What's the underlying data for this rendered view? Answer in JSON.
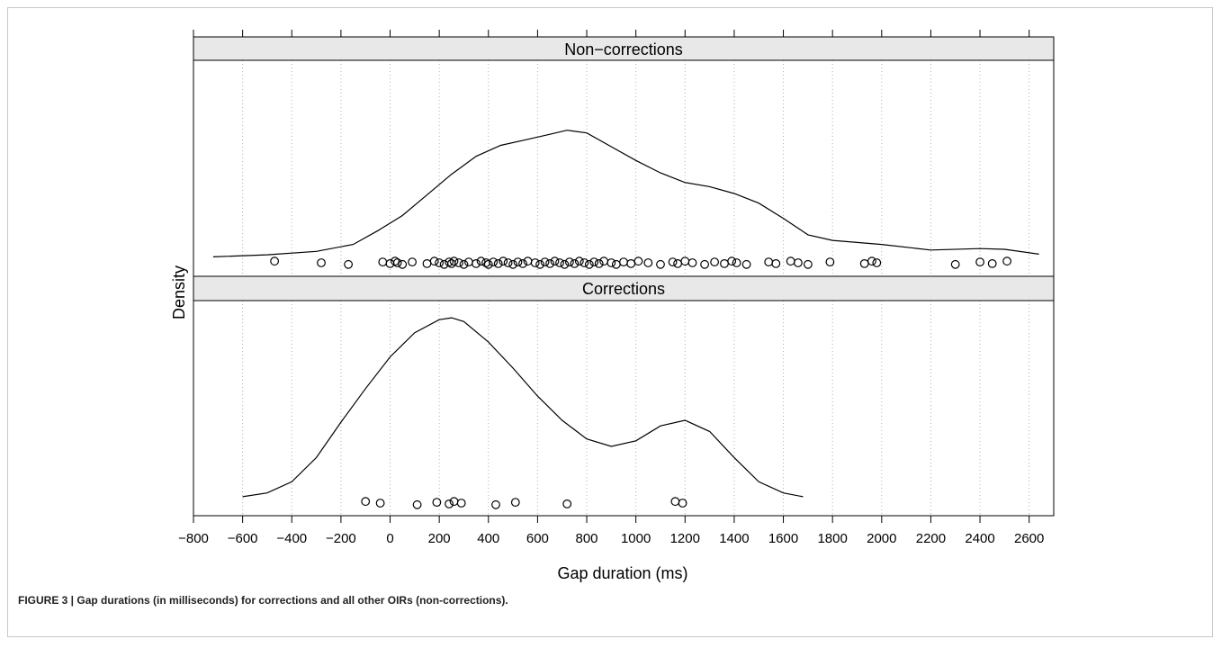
{
  "caption": "FIGURE 3 | Gap durations (in milliseconds) for corrections and all other OIRs (non-corrections).",
  "chart_data": {
    "type": "density",
    "xlabel": "Gap duration (ms)",
    "ylabel": "Density",
    "xlim": [
      -800,
      2700
    ],
    "xticks": [
      -800,
      -600,
      -400,
      -200,
      0,
      200,
      400,
      600,
      800,
      1000,
      1200,
      1400,
      1600,
      1800,
      2000,
      2200,
      2400,
      2600
    ],
    "grid": true,
    "panels": [
      {
        "label": "Non−corrections",
        "density": [
          [
            -720,
            0.03
          ],
          [
            -500,
            0.045
          ],
          [
            -300,
            0.07
          ],
          [
            -150,
            0.12
          ],
          [
            -50,
            0.22
          ],
          [
            50,
            0.33
          ],
          [
            150,
            0.48
          ],
          [
            250,
            0.63
          ],
          [
            350,
            0.76
          ],
          [
            450,
            0.84
          ],
          [
            550,
            0.88
          ],
          [
            650,
            0.92
          ],
          [
            720,
            0.95
          ],
          [
            800,
            0.93
          ],
          [
            900,
            0.83
          ],
          [
            1000,
            0.73
          ],
          [
            1100,
            0.64
          ],
          [
            1200,
            0.57
          ],
          [
            1300,
            0.54
          ],
          [
            1400,
            0.49
          ],
          [
            1500,
            0.42
          ],
          [
            1600,
            0.31
          ],
          [
            1700,
            0.19
          ],
          [
            1800,
            0.15
          ],
          [
            2000,
            0.12
          ],
          [
            2200,
            0.08
          ],
          [
            2400,
            0.09
          ],
          [
            2500,
            0.085
          ],
          [
            2640,
            0.05
          ]
        ],
        "observations": [
          -470,
          -280,
          -170,
          -30,
          0,
          20,
          30,
          50,
          90,
          150,
          180,
          200,
          220,
          240,
          250,
          260,
          280,
          300,
          320,
          350,
          370,
          390,
          400,
          420,
          440,
          460,
          480,
          500,
          520,
          540,
          560,
          590,
          610,
          630,
          650,
          670,
          690,
          710,
          730,
          750,
          770,
          790,
          810,
          830,
          850,
          870,
          900,
          920,
          950,
          980,
          1010,
          1050,
          1100,
          1150,
          1170,
          1200,
          1230,
          1280,
          1320,
          1360,
          1390,
          1410,
          1450,
          1540,
          1570,
          1630,
          1660,
          1700,
          1790,
          1930,
          1960,
          1980,
          2300,
          2400,
          2450,
          2510
        ]
      },
      {
        "label": "Corrections",
        "density": [
          [
            -600,
            0.02
          ],
          [
            -500,
            0.04
          ],
          [
            -400,
            0.1
          ],
          [
            -300,
            0.23
          ],
          [
            -200,
            0.42
          ],
          [
            -100,
            0.6
          ],
          [
            0,
            0.77
          ],
          [
            100,
            0.9
          ],
          [
            200,
            0.97
          ],
          [
            250,
            0.98
          ],
          [
            300,
            0.96
          ],
          [
            400,
            0.85
          ],
          [
            500,
            0.71
          ],
          [
            600,
            0.56
          ],
          [
            700,
            0.43
          ],
          [
            800,
            0.33
          ],
          [
            900,
            0.29
          ],
          [
            1000,
            0.32
          ],
          [
            1100,
            0.4
          ],
          [
            1200,
            0.43
          ],
          [
            1300,
            0.37
          ],
          [
            1400,
            0.23
          ],
          [
            1500,
            0.1
          ],
          [
            1600,
            0.04
          ],
          [
            1680,
            0.02
          ]
        ],
        "observations": [
          -100,
          -40,
          110,
          190,
          240,
          260,
          290,
          430,
          510,
          720,
          1160,
          1190
        ]
      }
    ]
  }
}
